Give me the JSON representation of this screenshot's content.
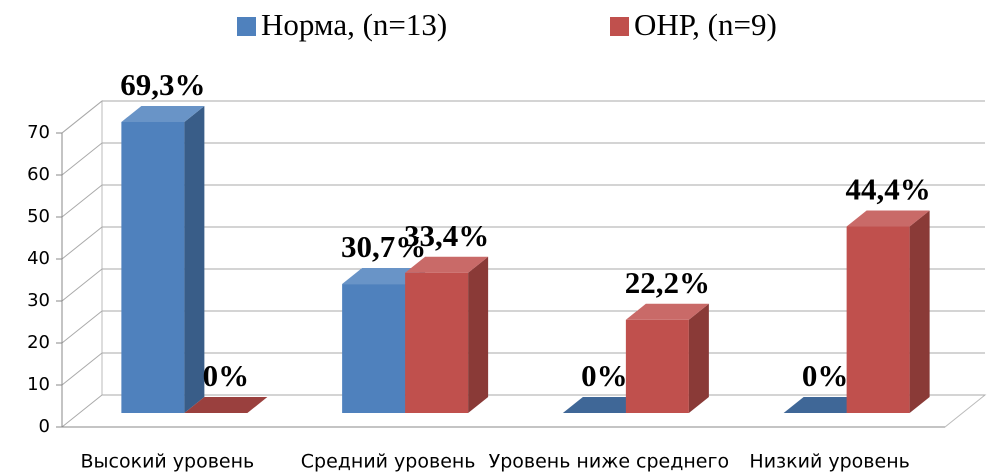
{
  "chart_data": {
    "type": "bar3d",
    "categories": [
      "Высокий уровень",
      "Средний уровень",
      "Уровень ниже среднего",
      "Низкий уровень"
    ],
    "series": [
      {
        "name": "Норма, (n=13)",
        "color": "#4f81bd",
        "values": [
          69.3,
          30.7,
          0,
          0
        ],
        "value_labels": [
          "69,3%",
          "30,7%",
          "0%",
          "0%"
        ]
      },
      {
        "name": "ОНР, (n=9)",
        "color": "#c0504d",
        "values": [
          0,
          33.4,
          22.2,
          44.4
        ],
        "value_labels": [
          "0%",
          "33,4%",
          "22,2%",
          "44,4%"
        ]
      }
    ],
    "ylim": [
      0,
      70
    ],
    "yticks": [
      0,
      10,
      20,
      30,
      40,
      50,
      60,
      70
    ],
    "grid": true,
    "legend": "top"
  }
}
